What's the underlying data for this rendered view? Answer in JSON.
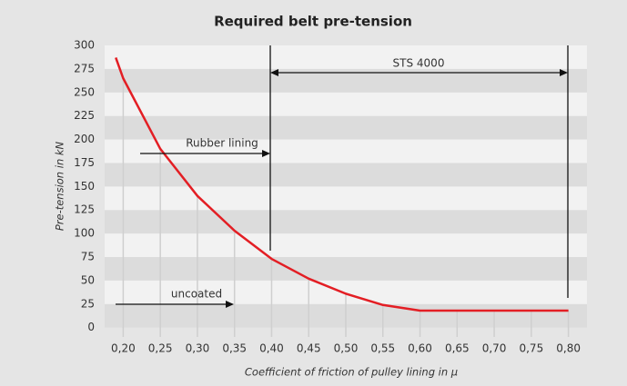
{
  "chart_data": {
    "type": "line",
    "title": "Required belt pre-tension",
    "x_label": "Coefficient of friction of pulley lining in μ",
    "y_label": "Pre-tension in kN",
    "series": [
      {
        "name": "Pre-tension",
        "color": "#e31e24",
        "x": [
          0.19,
          0.2,
          0.25,
          0.3,
          0.35,
          0.4,
          0.45,
          0.5,
          0.55,
          0.6,
          0.65,
          0.7,
          0.75,
          0.8
        ],
        "values": [
          287,
          265,
          190,
          140,
          103,
          73,
          52,
          36,
          24,
          18,
          18,
          18,
          18,
          18
        ]
      }
    ],
    "xlim": [
      0.175,
      0.825
    ],
    "ylim": [
      -10,
      300
    ],
    "xticks": [
      {
        "value": 0.2,
        "label": "0,20"
      },
      {
        "value": 0.25,
        "label": "0,25"
      },
      {
        "value": 0.3,
        "label": "0,30"
      },
      {
        "value": 0.35,
        "label": "0,35"
      },
      {
        "value": 0.4,
        "label": "0,40"
      },
      {
        "value": 0.45,
        "label": "0,45"
      },
      {
        "value": 0.5,
        "label": "0,50"
      },
      {
        "value": 0.55,
        "label": "0,55"
      },
      {
        "value": 0.6,
        "label": "0,60"
      },
      {
        "value": 0.65,
        "label": "0,65"
      },
      {
        "value": 0.7,
        "label": "0,70"
      },
      {
        "value": 0.75,
        "label": "0,75"
      },
      {
        "value": 0.8,
        "label": "0,80"
      }
    ],
    "yticks": [
      0,
      25,
      50,
      75,
      100,
      125,
      150,
      175,
      200,
      225,
      250,
      275,
      300
    ],
    "annotations": [
      "STS 4000",
      "Rubber lining",
      "uncoated"
    ],
    "grid": true
  }
}
